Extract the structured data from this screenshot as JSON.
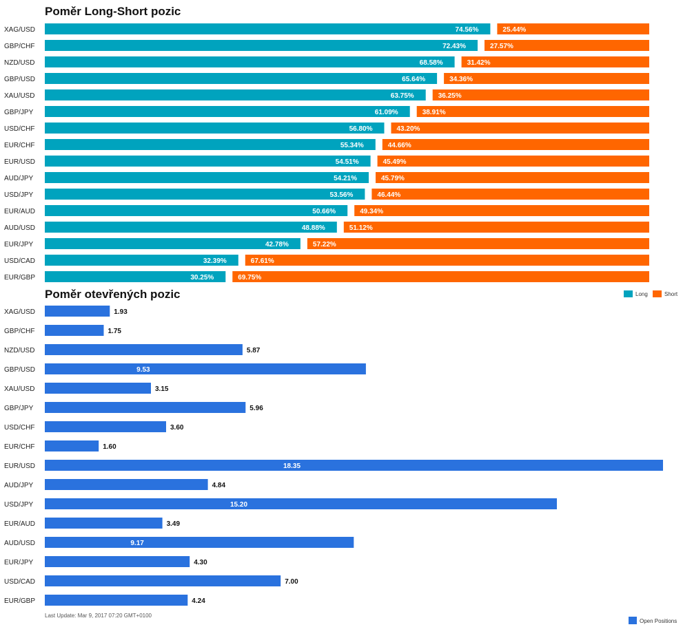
{
  "chart_data": [
    {
      "type": "bar",
      "title": "Poměr Long-Short pozic",
      "orientation": "horizontal",
      "stacked": true,
      "categories": [
        "XAG/USD",
        "GBP/CHF",
        "NZD/USD",
        "GBP/USD",
        "XAU/USD",
        "GBP/JPY",
        "USD/CHF",
        "EUR/CHF",
        "EUR/USD",
        "AUD/JPY",
        "USD/JPY",
        "EUR/AUD",
        "AUD/USD",
        "EUR/JPY",
        "USD/CAD",
        "EUR/GBP"
      ],
      "series": [
        {
          "name": "Long",
          "color": "#00a3be",
          "values": [
            74.56,
            72.43,
            68.58,
            65.64,
            63.75,
            61.09,
            56.8,
            55.34,
            54.51,
            54.21,
            53.56,
            50.66,
            48.88,
            42.78,
            32.39,
            30.25
          ],
          "labels": [
            "74.56%",
            "72.43%",
            "68.58%",
            "65.64%",
            "63.75%",
            "61.09%",
            "56.80%",
            "55.34%",
            "54.51%",
            "54.21%",
            "53.56%",
            "50.66%",
            "48.88%",
            "42.78%",
            "32.39%",
            "30.25%"
          ]
        },
        {
          "name": "Short",
          "color": "#ff6600",
          "values": [
            25.44,
            27.57,
            31.42,
            34.36,
            36.25,
            38.91,
            43.2,
            44.66,
            45.49,
            45.79,
            46.44,
            49.34,
            51.12,
            57.22,
            67.61,
            69.75
          ],
          "labels": [
            "25.44%",
            "27.57%",
            "31.42%",
            "34.36%",
            "36.25%",
            "38.91%",
            "43.20%",
            "44.66%",
            "45.49%",
            "45.79%",
            "46.44%",
            "49.34%",
            "51.12%",
            "57.22%",
            "67.61%",
            "69.75%"
          ]
        }
      ],
      "xlim": [
        0,
        100
      ],
      "legend": "top-right"
    },
    {
      "type": "bar",
      "title": "Poměr otevřených pozic",
      "orientation": "horizontal",
      "categories": [
        "XAG/USD",
        "GBP/CHF",
        "NZD/USD",
        "GBP/USD",
        "XAU/USD",
        "GBP/JPY",
        "USD/CHF",
        "EUR/CHF",
        "EUR/USD",
        "AUD/JPY",
        "USD/JPY",
        "EUR/AUD",
        "AUD/USD",
        "EUR/JPY",
        "USD/CAD",
        "EUR/GBP"
      ],
      "series": [
        {
          "name": "Open Positions",
          "color": "#2a72de",
          "values": [
            1.93,
            1.75,
            5.87,
            9.53,
            3.15,
            5.96,
            3.6,
            1.6,
            18.35,
            4.84,
            15.2,
            3.49,
            9.17,
            4.3,
            7.0,
            4.24
          ],
          "labels": [
            "1.93",
            "1.75",
            "5.87",
            "9.53",
            "3.15",
            "5.96",
            "3.60",
            "1.60",
            "18.35",
            "4.84",
            "15.20",
            "3.49",
            "9.17",
            "4.30",
            "7.00",
            "4.24"
          ]
        }
      ],
      "xlim": [
        0,
        18.35
      ],
      "legend": "bottom-right"
    }
  ],
  "footer": {
    "last_update": "Last Update: Mar 9, 2017 07:20 GMT+0100"
  }
}
